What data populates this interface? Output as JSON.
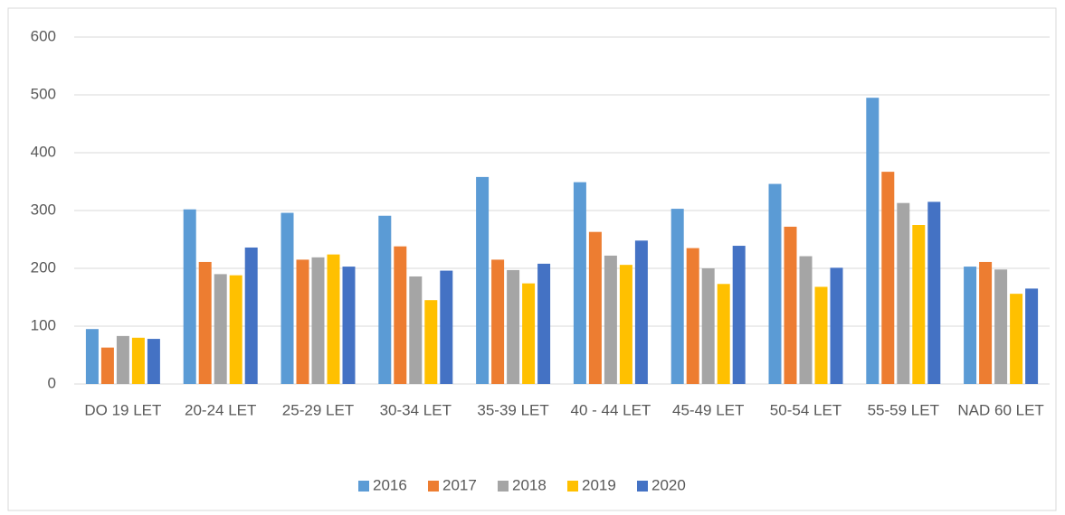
{
  "chart_data": {
    "type": "bar",
    "categories": [
      "DO 19 LET",
      "20-24 LET",
      "25-29 LET",
      "30-34 LET",
      "35-39 LET",
      "40 - 44 LET",
      "45-49 LET",
      "50-54 LET",
      "55-59 LET",
      "NAD 60 LET"
    ],
    "series": [
      {
        "name": "2016",
        "color": "#5b9bd5",
        "values": [
          95,
          302,
          296,
          291,
          358,
          349,
          303,
          346,
          495,
          203
        ]
      },
      {
        "name": "2017",
        "color": "#ed7d31",
        "values": [
          63,
          211,
          215,
          238,
          215,
          263,
          235,
          272,
          367,
          211
        ]
      },
      {
        "name": "2018",
        "color": "#a5a5a5",
        "values": [
          83,
          190,
          219,
          186,
          197,
          222,
          200,
          221,
          313,
          198
        ]
      },
      {
        "name": "2019",
        "color": "#ffc000",
        "values": [
          80,
          188,
          224,
          145,
          174,
          206,
          173,
          168,
          275,
          156
        ]
      },
      {
        "name": "2020",
        "color": "#4472c4",
        "values": [
          78,
          236,
          203,
          196,
          208,
          248,
          239,
          201,
          315,
          165
        ]
      }
    ],
    "ylim": [
      0,
      600
    ],
    "yticks": [
      0,
      100,
      200,
      300,
      400,
      500,
      600
    ],
    "grid": true,
    "legend": "bottom"
  }
}
